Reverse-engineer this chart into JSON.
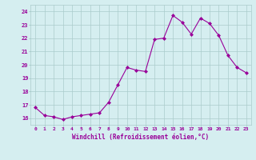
{
  "x": [
    0,
    1,
    2,
    3,
    4,
    5,
    6,
    7,
    8,
    9,
    10,
    11,
    12,
    13,
    14,
    15,
    16,
    17,
    18,
    19,
    20,
    21,
    22,
    23
  ],
  "y": [
    16.8,
    16.2,
    16.1,
    15.9,
    16.1,
    16.2,
    16.3,
    16.4,
    17.2,
    18.5,
    19.8,
    19.6,
    19.5,
    21.9,
    22.0,
    23.7,
    23.2,
    22.3,
    23.5,
    23.1,
    22.2,
    20.7,
    19.8,
    19.4
  ],
  "line_color": "#990099",
  "marker": "D",
  "marker_size": 2,
  "bg_color": "#d5eef0",
  "grid_color": "#aacccc",
  "xlabel": "Windchill (Refroidissement éolien,°C)",
  "ylim": [
    15.5,
    24.5
  ],
  "xlim": [
    -0.5,
    23.5
  ],
  "yticks": [
    16,
    17,
    18,
    19,
    20,
    21,
    22,
    23,
    24
  ],
  "xticks": [
    0,
    1,
    2,
    3,
    4,
    5,
    6,
    7,
    8,
    9,
    10,
    11,
    12,
    13,
    14,
    15,
    16,
    17,
    18,
    19,
    20,
    21,
    22,
    23
  ]
}
